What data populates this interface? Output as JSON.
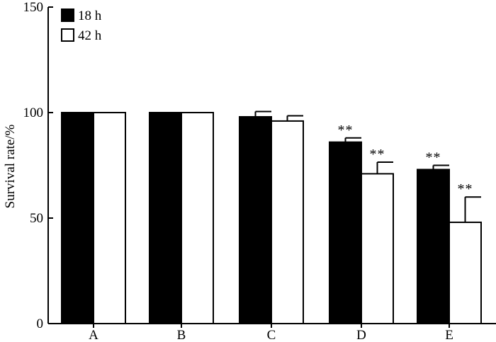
{
  "chart_data": {
    "type": "bar",
    "title": "",
    "xlabel": "",
    "ylabel": "Survival rate/%",
    "ylim": [
      0,
      150
    ],
    "yticks": [
      0,
      50,
      100,
      150
    ],
    "categories": [
      "A",
      "B",
      "C",
      "D",
      "E"
    ],
    "series": [
      {
        "name": "18 h",
        "color": "#000000",
        "values": [
          100,
          100,
          98,
          86,
          73
        ],
        "errors": [
          0,
          0,
          2.5,
          2,
          2
        ],
        "annotations": [
          "",
          "",
          "",
          "**",
          "**"
        ]
      },
      {
        "name": "42 h",
        "color": "#ffffff",
        "values": [
          100,
          100,
          96,
          71,
          48
        ],
        "errors": [
          0,
          0,
          2.5,
          5.5,
          12
        ],
        "annotations": [
          "",
          "",
          "",
          "**",
          "**"
        ]
      }
    ],
    "legend": "top-left",
    "grid": false
  }
}
